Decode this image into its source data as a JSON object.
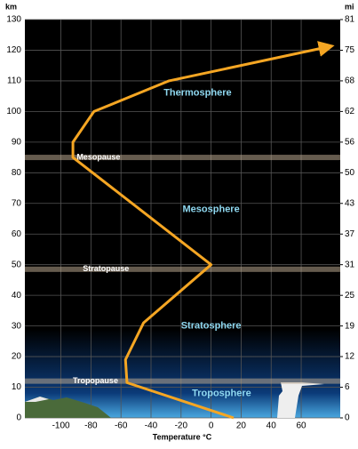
{
  "chart_data": {
    "type": "line",
    "xlabel": "Temperature  °C",
    "ylabel": "km",
    "y2label": "mi",
    "xlim": [
      -124,
      86
    ],
    "xticks": [
      -100,
      -80,
      -60,
      -40,
      -20,
      0,
      20,
      40,
      60
    ],
    "ylim": [
      0,
      130
    ],
    "yticks": [
      0,
      10,
      20,
      30,
      40,
      50,
      60,
      70,
      80,
      90,
      100,
      110,
      120,
      130
    ],
    "y2lim": [
      0,
      80.78
    ],
    "y2ticks": [
      0,
      {
        "value": 6.21,
        "label": "6"
      },
      {
        "value": 12.43,
        "label": "12"
      },
      {
        "value": 18.64,
        "label": "19"
      },
      {
        "value": 24.85,
        "label": "25"
      },
      {
        "value": 31.07,
        "label": "31"
      },
      {
        "value": 37.28,
        "label": "37"
      },
      {
        "value": 43.496,
        "label": "43"
      },
      {
        "value": 49.71,
        "label": "50"
      },
      {
        "value": 55.92,
        "label": "56"
      },
      {
        "value": 62.14,
        "label": "62"
      },
      {
        "value": 68.35,
        "label": "68"
      },
      {
        "value": 74.56,
        "label": "75"
      },
      {
        "value": 80.78,
        "label": "81"
      }
    ],
    "grid": true,
    "series": [
      {
        "color": "#f5a623",
        "x": [
          15,
          -56,
          -57,
          -45,
          0,
          -92,
          -92,
          -78,
          -28,
          77
        ],
        "values": [
          0,
          11.5,
          19,
          31,
          50,
          85,
          90,
          100,
          110,
          121
        ]
      }
    ],
    "boundaries": [
      {
        "label": "Mesopause",
        "value": 85
      },
      {
        "label": "Stratopause",
        "value": 48.5
      },
      {
        "label": "Tropopause",
        "value": 12
      }
    ],
    "layers": [
      "Thermosphere",
      "Mesosphere",
      "Stratosphere",
      "Troposphere"
    ]
  }
}
